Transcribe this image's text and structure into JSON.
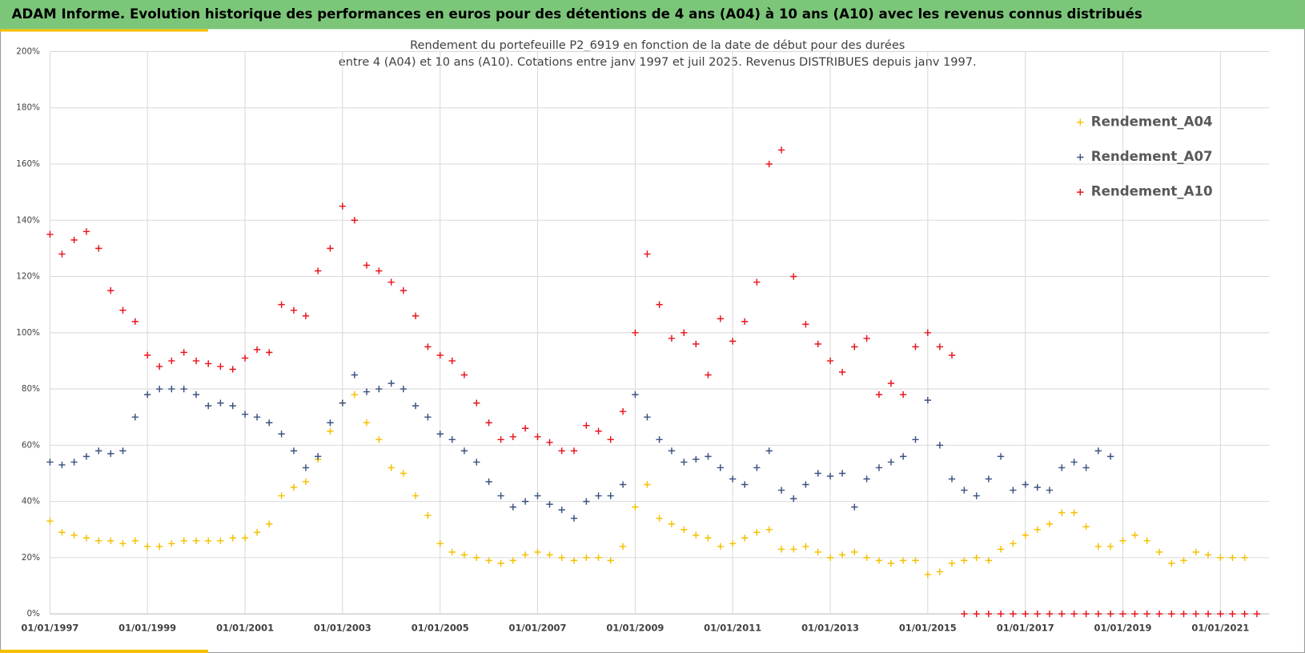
{
  "header": {
    "title": "ADAM Informe. Evolution historique des performances en euros pour des détentions de 4 ans (A04) à 10 ans (A10) avec les revenus connus distribués"
  },
  "chart_data": {
    "type": "scatter",
    "title": "Rendement du portefeuille P2_6919 en fonction de la date de début pour des durées",
    "subtitle": "entre 4 (A04) et 10 ans (A10). Cotations  entre janv 1997 et juil 2025. Revenus DISTRIBUES depuis janv 1997.",
    "x": [
      "1997-01-01",
      "1997-04-01",
      "1997-07-01",
      "1997-10-01",
      "1998-01-01",
      "1998-04-01",
      "1998-07-01",
      "1998-10-01",
      "1999-01-01",
      "1999-04-01",
      "1999-07-01",
      "1999-10-01",
      "2000-01-01",
      "2000-04-01",
      "2000-07-01",
      "2000-10-01",
      "2001-01-01",
      "2001-04-01",
      "2001-07-01",
      "2001-10-01",
      "2002-01-01",
      "2002-04-01",
      "2002-07-01",
      "2002-10-01",
      "2003-01-01",
      "2003-04-01",
      "2003-07-01",
      "2003-10-01",
      "2004-01-01",
      "2004-04-01",
      "2004-07-01",
      "2004-10-01",
      "2005-01-01",
      "2005-04-01",
      "2005-07-01",
      "2005-10-01",
      "2006-01-01",
      "2006-04-01",
      "2006-07-01",
      "2006-10-01",
      "2007-01-01",
      "2007-04-01",
      "2007-07-01",
      "2007-10-01",
      "2008-01-01",
      "2008-04-01",
      "2008-07-01",
      "2008-10-01",
      "2009-01-01",
      "2009-04-01",
      "2009-07-01",
      "2009-10-01",
      "2010-01-01",
      "2010-04-01",
      "2010-07-01",
      "2010-10-01",
      "2011-01-01",
      "2011-04-01",
      "2011-07-01",
      "2011-10-01",
      "2012-01-01",
      "2012-04-01",
      "2012-07-01",
      "2012-10-01",
      "2013-01-01",
      "2013-04-01",
      "2013-07-01",
      "2013-10-01",
      "2014-01-01",
      "2014-04-01",
      "2014-07-01",
      "2014-10-01",
      "2015-01-01",
      "2015-04-01",
      "2015-07-01",
      "2015-10-01",
      "2016-01-01",
      "2016-04-01",
      "2016-07-01",
      "2016-10-01",
      "2017-01-01",
      "2017-04-01",
      "2017-07-01",
      "2017-10-01",
      "2018-01-01",
      "2018-04-01",
      "2018-07-01",
      "2018-10-01",
      "2019-01-01",
      "2019-04-01",
      "2019-07-01",
      "2019-10-01",
      "2020-01-01",
      "2020-04-01",
      "2020-07-01",
      "2020-10-01",
      "2021-01-01",
      "2021-04-01",
      "2021-07-01",
      "2021-10-01"
    ],
    "series": [
      {
        "name": "Rendement_A04",
        "color": "#f5c000",
        "values": [
          33,
          29,
          28,
          27,
          26,
          26,
          25,
          26,
          24,
          24,
          25,
          26,
          26,
          26,
          26,
          27,
          27,
          29,
          32,
          42,
          45,
          47,
          55,
          65,
          75,
          78,
          68,
          62,
          52,
          50,
          42,
          35,
          25,
          22,
          21,
          20,
          19,
          18,
          19,
          21,
          22,
          21,
          20,
          19,
          20,
          20,
          19,
          24,
          38,
          46,
          34,
          32,
          30,
          28,
          27,
          24,
          25,
          27,
          29,
          30,
          23,
          23,
          24,
          22,
          20,
          21,
          22,
          20,
          19,
          18,
          19,
          19,
          14,
          15,
          18,
          19,
          20,
          19,
          23,
          25,
          28,
          30,
          32,
          36,
          36,
          31,
          24,
          24,
          26,
          28,
          26,
          22,
          18,
          19,
          22,
          21,
          20,
          20,
          20,
          null
        ]
      },
      {
        "name": "Rendement_A07",
        "color": "#3a5280",
        "values": [
          54,
          53,
          54,
          56,
          58,
          57,
          58,
          70,
          78,
          80,
          80,
          80,
          78,
          74,
          75,
          74,
          71,
          70,
          68,
          64,
          58,
          52,
          56,
          68,
          75,
          85,
          79,
          80,
          82,
          80,
          74,
          70,
          64,
          62,
          58,
          54,
          47,
          42,
          38,
          40,
          42,
          39,
          37,
          34,
          40,
          42,
          42,
          46,
          78,
          70,
          62,
          58,
          54,
          55,
          56,
          52,
          48,
          46,
          52,
          58,
          44,
          41,
          46,
          50,
          49,
          50,
          38,
          48,
          52,
          54,
          56,
          62,
          76,
          60,
          48,
          44,
          42,
          48,
          56,
          44,
          46,
          45,
          44,
          52,
          54,
          52,
          58,
          56,
          null,
          null,
          null,
          null,
          null,
          null,
          null,
          null,
          null,
          null,
          null,
          null
        ]
      },
      {
        "name": "Rendement_A10",
        "color": "#e8141c",
        "values": [
          135,
          128,
          133,
          136,
          130,
          115,
          108,
          104,
          92,
          88,
          90,
          93,
          90,
          89,
          88,
          87,
          91,
          94,
          93,
          110,
          108,
          106,
          122,
          130,
          145,
          140,
          124,
          122,
          118,
          115,
          106,
          95,
          92,
          90,
          85,
          75,
          68,
          62,
          63,
          66,
          63,
          61,
          58,
          58,
          67,
          65,
          62,
          72,
          100,
          128,
          110,
          98,
          100,
          96,
          85,
          105,
          97,
          104,
          118,
          160,
          165,
          120,
          103,
          96,
          90,
          86,
          95,
          98,
          78,
          82,
          78,
          95,
          100,
          95,
          92,
          0,
          0,
          0,
          0,
          0,
          0,
          0,
          0,
          0,
          0,
          0,
          0,
          0,
          0,
          0,
          0,
          0,
          0,
          0,
          0,
          0,
          0,
          0,
          0,
          0
        ]
      }
    ],
    "xlim": [
      "1997-01-01",
      "2022-01-01"
    ],
    "xticks": [
      {
        "value": "1997-01-01",
        "label": "01/01/1997"
      },
      {
        "value": "1999-01-01",
        "label": "01/01/1999"
      },
      {
        "value": "2001-01-01",
        "label": "01/01/2001"
      },
      {
        "value": "2003-01-01",
        "label": "01/01/2003"
      },
      {
        "value": "2005-01-01",
        "label": "01/01/2005"
      },
      {
        "value": "2007-01-01",
        "label": "01/01/2007"
      },
      {
        "value": "2009-01-01",
        "label": "01/01/2009"
      },
      {
        "value": "2011-01-01",
        "label": "01/01/2011"
      },
      {
        "value": "2013-01-01",
        "label": "01/01/2013"
      },
      {
        "value": "2015-01-01",
        "label": "01/01/2015"
      },
      {
        "value": "2017-01-01",
        "label": "01/01/2017"
      },
      {
        "value": "2019-01-01",
        "label": "01/01/2019"
      },
      {
        "value": "2021-01-01",
        "label": "01/01/2021"
      }
    ],
    "ylim": [
      0,
      200
    ],
    "yticks": [
      {
        "value": 0,
        "label": "0%"
      },
      {
        "value": 20,
        "label": "20%"
      },
      {
        "value": 40,
        "label": "40%"
      },
      {
        "value": 60,
        "label": "60%"
      },
      {
        "value": 80,
        "label": "80%"
      },
      {
        "value": 100,
        "label": "100%"
      },
      {
        "value": 120,
        "label": "120%"
      },
      {
        "value": 140,
        "label": "140%"
      },
      {
        "value": 160,
        "label": "160%"
      },
      {
        "value": 180,
        "label": "180%"
      },
      {
        "value": 200,
        "label": "200%"
      }
    ],
    "grid": true,
    "legend": "upper right"
  }
}
